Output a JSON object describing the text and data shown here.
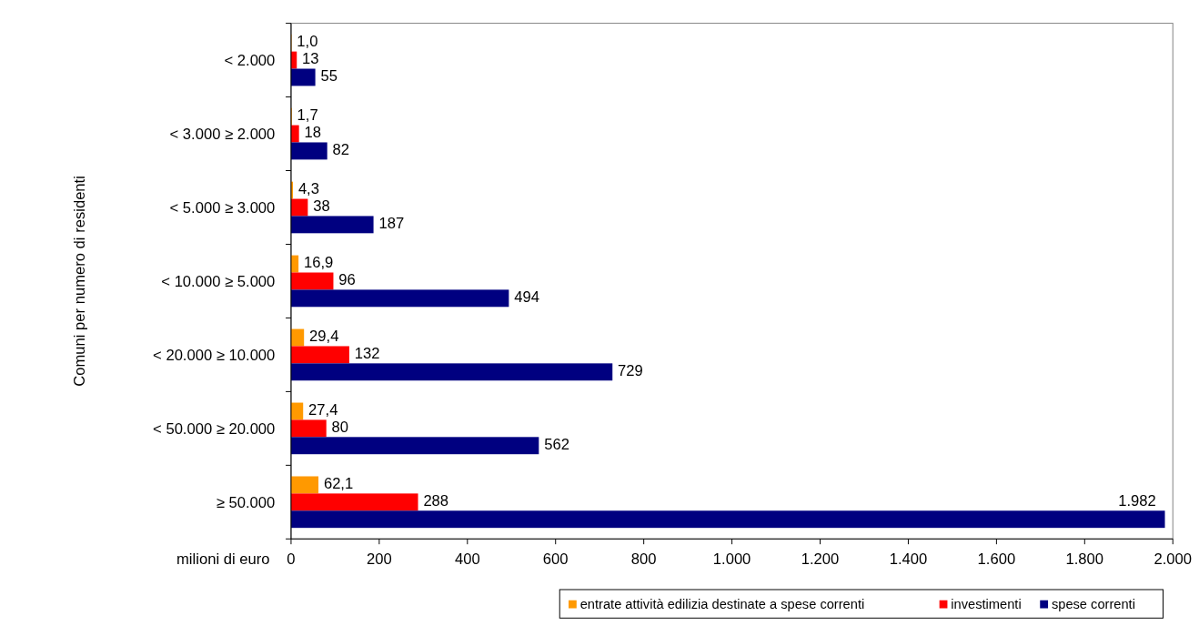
{
  "chart_data": {
    "type": "bar",
    "orientation": "horizontal",
    "xlabel": "milioni di euro",
    "ylabel": "Comuni per numero di residenti",
    "categories": [
      "< 2.000",
      "< 3.000 ≥ 2.000",
      "< 5.000 ≥ 3.000",
      "< 10.000 ≥ 5.000",
      "< 20.000 ≥ 10.000",
      "< 50.000 ≥ 20.000",
      "≥ 50.000"
    ],
    "series": [
      {
        "name": "entrate attività edilizia destinate a spese correnti",
        "color": "#ff9900",
        "values": [
          1.0,
          1.7,
          4.3,
          16.9,
          29.4,
          27.4,
          62.1
        ],
        "value_labels": [
          "1,0",
          "1,7",
          "4,3",
          "16,9",
          "29,4",
          "27,4",
          "62,1"
        ]
      },
      {
        "name": "investimenti",
        "color": "#ff0000",
        "values": [
          13,
          18,
          38,
          96,
          132,
          80,
          288
        ],
        "value_labels": [
          "13",
          "18",
          "38",
          "96",
          "132",
          "80",
          "288"
        ]
      },
      {
        "name": "spese correnti",
        "color": "#000080",
        "values": [
          55,
          82,
          187,
          494,
          729,
          562,
          1982
        ],
        "value_labels": [
          "55",
          "82",
          "187",
          "494",
          "729",
          "562",
          "1.982"
        ]
      }
    ],
    "xlim": [
      0,
      2000
    ],
    "xticks": [
      0,
      200,
      400,
      600,
      800,
      {
        "value": 1000,
        "label": "1.000"
      },
      {
        "value": 1200,
        "label": "1.200"
      },
      {
        "value": 1400,
        "label": "1.400"
      },
      {
        "value": 1600,
        "label": "1.600"
      },
      {
        "value": 1800,
        "label": "1.800"
      },
      {
        "value": 2000,
        "label": "2.000"
      }
    ],
    "legend": "bottom right"
  }
}
